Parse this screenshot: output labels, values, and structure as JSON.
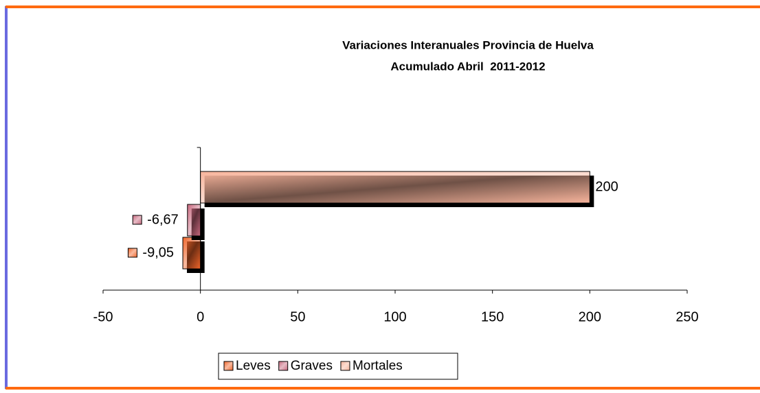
{
  "chart_data": {
    "type": "hbar",
    "title": "Variaciones Interanuales Provincia de Huelva",
    "subtitle": "Acumulado Abril  2011-2012",
    "categories": [
      null
    ],
    "series": [
      {
        "name": "Leves",
        "color": "#f0652a",
        "values": [
          -9.05
        ],
        "value_labels": [
          "-9,05"
        ]
      },
      {
        "name": "Graves",
        "color": "#c8687e",
        "values": [
          -6.67
        ],
        "value_labels": [
          "-6,67"
        ]
      },
      {
        "name": "Mortales",
        "color": "#f7b49c",
        "values": [
          200
        ],
        "value_labels": [
          "200"
        ]
      }
    ],
    "xlim": [
      -50,
      250
    ],
    "xticks": [
      -50,
      0,
      50,
      100,
      150,
      200,
      250
    ],
    "legend": "bottom"
  }
}
